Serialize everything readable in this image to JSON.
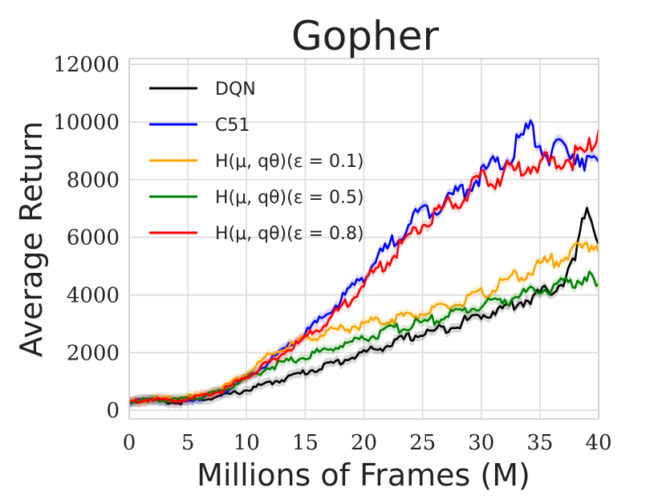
{
  "chart_data": {
    "type": "line",
    "title": "Gopher",
    "xlabel": "Millions of Frames (M)",
    "ylabel": "Average Return",
    "xlim": [
      0,
      40
    ],
    "ylim": [
      -300,
      12200
    ],
    "xticks": [
      0,
      5,
      10,
      15,
      20,
      25,
      30,
      35,
      40
    ],
    "yticks": [
      0,
      2000,
      4000,
      6000,
      8000,
      10000,
      12000
    ],
    "grid": true,
    "legend_position": "top-left",
    "x": [
      0,
      2,
      4,
      6,
      8,
      10,
      12,
      14,
      16,
      18,
      20,
      22,
      24,
      26,
      28,
      30,
      32,
      34,
      36,
      37,
      38,
      39,
      40
    ],
    "series": [
      {
        "name": "DQN",
        "color": "#000000",
        "values": [
          300,
          350,
          250,
          380,
          500,
          700,
          950,
          1200,
          1450,
          1700,
          2000,
          2250,
          2550,
          2750,
          3000,
          3300,
          3550,
          3850,
          4200,
          4500,
          5200,
          7100,
          5900
        ]
      },
      {
        "name": "C51",
        "color": "#0000ff",
        "values": [
          300,
          380,
          300,
          420,
          650,
          1100,
          1700,
          2350,
          3000,
          3800,
          4700,
          5600,
          6600,
          7100,
          7500,
          8200,
          8600,
          9700,
          8800,
          9100,
          9000,
          8700,
          8300
        ]
      },
      {
        "name": "H(μ, qθ)(ε = 0.1)",
        "label_math": "ε = 0.1",
        "color": "#ffa500",
        "values": [
          300,
          400,
          450,
          500,
          800,
          1300,
          1900,
          2300,
          2600,
          2800,
          3000,
          3150,
          3300,
          3450,
          3700,
          4000,
          4450,
          4800,
          5200,
          5350,
          5500,
          5700,
          5800
        ]
      },
      {
        "name": "H(μ, qθ)(ε = 0.5)",
        "label_math": "ε = 0.5",
        "color": "#008000",
        "values": [
          300,
          380,
          350,
          450,
          700,
          1100,
          1500,
          1750,
          2000,
          2250,
          2500,
          2750,
          2950,
          3150,
          3400,
          3650,
          3850,
          4050,
          4250,
          4350,
          4500,
          4650,
          4200
        ]
      },
      {
        "name": "H(μ, qθ)(ε = 0.8)",
        "label_math": "ε = 0.8",
        "color": "#ff0000",
        "values": [
          300,
          380,
          320,
          450,
          700,
          1150,
          1700,
          2200,
          2800,
          3500,
          4400,
          5200,
          6100,
          6800,
          7300,
          7900,
          8200,
          8500,
          8600,
          8700,
          8800,
          9000,
          9800
        ]
      }
    ]
  }
}
